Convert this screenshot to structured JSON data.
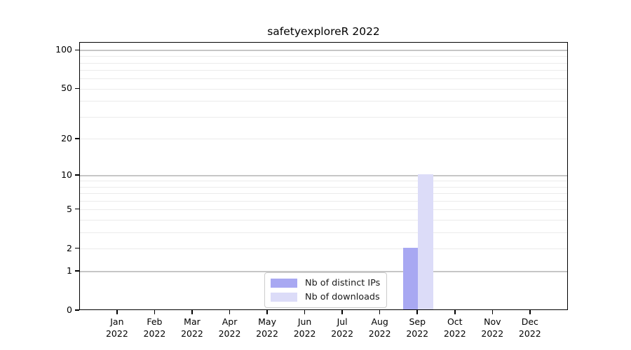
{
  "chart_data": {
    "type": "bar",
    "title": "safetyexploreR 2022",
    "categories": [
      "Jan 2022",
      "Feb 2022",
      "Mar 2022",
      "Apr 2022",
      "May 2022",
      "Jun 2022",
      "Jul 2022",
      "Aug 2022",
      "Sep 2022",
      "Oct 2022",
      "Nov 2022",
      "Dec 2022"
    ],
    "series": [
      {
        "name": "Nb of distinct IPs",
        "color": "#a8a8f2",
        "values": [
          0,
          0,
          0,
          0,
          0,
          0,
          0,
          0,
          2,
          0,
          0,
          0
        ]
      },
      {
        "name": "Nb of downloads",
        "color": "#dcdcf8",
        "values": [
          0,
          0,
          0,
          0,
          0,
          0,
          0,
          0,
          10,
          0,
          0,
          0
        ]
      }
    ],
    "xlabel": "",
    "ylabel": "",
    "yscale": "log1p",
    "yticks": [
      0,
      1,
      2,
      5,
      10,
      20,
      50,
      100
    ],
    "ytick_major_gridlines": [
      1,
      10,
      100
    ],
    "ytick_minor_gridlines": [
      2,
      3,
      4,
      5,
      6,
      7,
      8,
      9,
      20,
      30,
      40,
      50,
      60,
      70,
      80,
      90
    ],
    "ylim": [
      0,
      115
    ],
    "grid": "horizontal",
    "legend_position": "bottom-center-inside",
    "colors": {
      "grid_major": "#c6c6c6",
      "grid_minor": "#ebebeb",
      "spine": "#000000",
      "background": "#ffffff"
    }
  }
}
